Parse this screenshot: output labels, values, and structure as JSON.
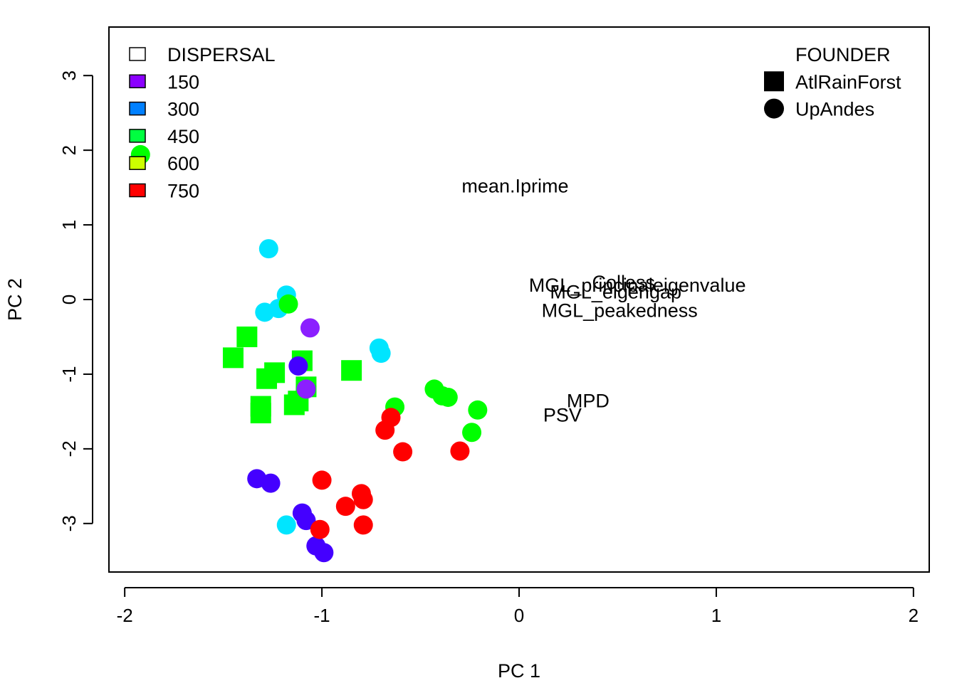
{
  "chart_data": {
    "type": "scatter",
    "xlabel": "PC 1",
    "ylabel": "PC 2",
    "xlim": [
      -2.08,
      2.08
    ],
    "ylim": [
      -3.65,
      3.65
    ],
    "x_ticks": [
      -2,
      -1,
      0,
      1,
      2
    ],
    "y_ticks": [
      -3,
      -2,
      -1,
      0,
      1,
      2,
      3
    ],
    "grid": false,
    "legend_color": {
      "placement": "top-left",
      "title": "DISPERSAL",
      "entries": [
        {
          "label": "150",
          "color": "#8b00ff"
        },
        {
          "label": "300",
          "color": "#0080ff"
        },
        {
          "label": "450",
          "color": "#00ff40"
        },
        {
          "label": "600",
          "color": "#ccff00"
        },
        {
          "label": "750",
          "color": "#ff0000"
        }
      ]
    },
    "legend_shape": {
      "placement": "top-right",
      "title": "FOUNDER",
      "entries": [
        {
          "label": "AtlRainForst",
          "shape": "square"
        },
        {
          "label": "UpAndes",
          "shape": "circle"
        }
      ]
    },
    "variable_labels": [
      {
        "text": "mean.Iprime",
        "x": -0.02,
        "y": 1.52
      },
      {
        "text": "MGL_principaleigenvalue",
        "x": 0.6,
        "y": 0.19
      },
      {
        "text": "Colless",
        "x": 0.53,
        "y": 0.23
      },
      {
        "text": "MGL_eigengap",
        "x": 0.49,
        "y": 0.1
      },
      {
        "text": "MGL_peakedness",
        "x": 0.51,
        "y": -0.15
      },
      {
        "text": "MPD",
        "x": 0.35,
        "y": -1.36
      },
      {
        "text": "PSV",
        "x": 0.22,
        "y": -1.55
      }
    ],
    "series": [
      {
        "shape": "circle",
        "color": "#00e5ff",
        "points": [
          {
            "x": -1.27,
            "y": 0.68
          },
          {
            "x": -1.18,
            "y": 0.06
          },
          {
            "x": -1.22,
            "y": -0.12
          },
          {
            "x": -1.29,
            "y": -0.17
          },
          {
            "x": -0.71,
            "y": -0.65
          },
          {
            "x": -0.7,
            "y": -0.72
          },
          {
            "x": -1.18,
            "y": -3.02
          }
        ]
      },
      {
        "shape": "circle",
        "color": "#00ff00",
        "points": [
          {
            "x": -1.92,
            "y": 1.94
          },
          {
            "x": -1.17,
            "y": -0.06
          },
          {
            "x": -0.63,
            "y": -1.44
          },
          {
            "x": -0.43,
            "y": -1.2
          },
          {
            "x": -0.39,
            "y": -1.29
          },
          {
            "x": -0.36,
            "y": -1.31
          },
          {
            "x": -0.21,
            "y": -1.48
          },
          {
            "x": -0.24,
            "y": -1.78
          }
        ]
      },
      {
        "shape": "square",
        "color": "#00ff00",
        "points": [
          {
            "x": -1.38,
            "y": -0.5
          },
          {
            "x": -1.45,
            "y": -0.78
          },
          {
            "x": -1.24,
            "y": -0.98
          },
          {
            "x": -1.28,
            "y": -1.06
          },
          {
            "x": -1.1,
            "y": -0.82
          },
          {
            "x": -0.85,
            "y": -0.95
          },
          {
            "x": -1.08,
            "y": -1.17
          },
          {
            "x": -1.12,
            "y": -1.36
          },
          {
            "x": -1.14,
            "y": -1.41
          },
          {
            "x": -1.31,
            "y": -1.43
          },
          {
            "x": -1.31,
            "y": -1.52
          }
        ]
      },
      {
        "shape": "circle",
        "color": "#8b1fff",
        "points": [
          {
            "x": -1.06,
            "y": -0.38
          },
          {
            "x": -1.08,
            "y": -1.2
          }
        ]
      },
      {
        "shape": "circle",
        "color": "#4400ff",
        "points": [
          {
            "x": -1.12,
            "y": -0.89
          },
          {
            "x": -1.33,
            "y": -2.4
          },
          {
            "x": -1.26,
            "y": -2.46
          },
          {
            "x": -1.1,
            "y": -2.86
          },
          {
            "x": -1.08,
            "y": -2.96
          },
          {
            "x": -1.03,
            "y": -3.3
          },
          {
            "x": -0.99,
            "y": -3.39
          }
        ]
      },
      {
        "shape": "circle",
        "color": "#ff0000",
        "points": [
          {
            "x": -0.65,
            "y": -1.58
          },
          {
            "x": -0.68,
            "y": -1.75
          },
          {
            "x": -0.59,
            "y": -2.04
          },
          {
            "x": -0.3,
            "y": -2.03
          },
          {
            "x": -1.0,
            "y": -2.42
          },
          {
            "x": -0.8,
            "y": -2.6
          },
          {
            "x": -0.79,
            "y": -2.68
          },
          {
            "x": -0.88,
            "y": -2.77
          },
          {
            "x": -0.79,
            "y": -3.02
          },
          {
            "x": -1.01,
            "y": -3.08
          }
        ]
      }
    ]
  }
}
